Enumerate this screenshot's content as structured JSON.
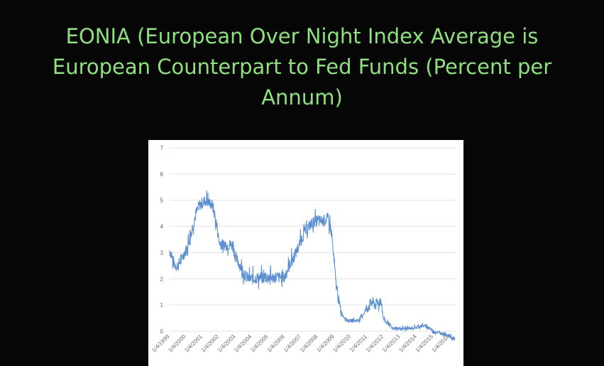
{
  "slide": {
    "title_lines": [
      "EONIA (European Over Night Index Average is",
      "European Counterpart to Fed Funds (Percent per",
      "Annum)"
    ],
    "title_color": "#8fe07f",
    "background": "#060606"
  },
  "chart_data": {
    "type": "line",
    "line_color": "#5b8fd0",
    "grid": true,
    "legend": "none",
    "xlim": [
      1999.0,
      2016.4
    ],
    "ylim": [
      0,
      7
    ],
    "y_ticks": [
      "0",
      "1",
      "2",
      "3",
      "4",
      "5",
      "6",
      "7"
    ],
    "x_tick_labels": [
      "1/4/1999",
      "1/4/2000",
      "1/4/2001",
      "1/4/2002",
      "1/4/2003",
      "1/4/2004",
      "1/4/2005",
      "1/4/2006",
      "1/4/2007",
      "1/4/2008",
      "1/4/2009",
      "1/4/2010",
      "1/4/2011",
      "1/4/2012",
      "1/4/2013",
      "1/4/2014",
      "1/4/2015",
      "1/4/2016"
    ],
    "x_tick_years": [
      1999,
      2000,
      2001,
      2002,
      2003,
      2004,
      2005,
      2006,
      2007,
      2008,
      2009,
      2010,
      2011,
      2012,
      2013,
      2014,
      2015,
      2016
    ],
    "series": [
      {
        "x": [
          1999.0,
          1999.1,
          1999.25,
          1999.4,
          1999.5,
          1999.7,
          1999.9,
          2000.0,
          2000.2,
          2000.4,
          2000.6,
          2000.8,
          2001.0,
          2001.2,
          2001.4,
          2001.6,
          2001.75,
          2001.9,
          2002.0,
          2002.2,
          2002.5,
          2002.8,
          2002.9,
          2003.0,
          2003.2,
          2003.45,
          2003.6,
          2003.8,
          2004.0,
          2004.5,
          2005.0,
          2005.5,
          2005.8,
          2006.0,
          2006.2,
          2006.4,
          2006.6,
          2006.8,
          2007.0,
          2007.2,
          2007.45,
          2007.6,
          2007.8,
          2008.0,
          2008.3,
          2008.6,
          2008.75,
          2008.85,
          2008.95,
          2009.1,
          2009.3,
          2009.5,
          2009.8,
          2010.0,
          2010.3,
          2010.5,
          2010.7,
          2011.0,
          2011.3,
          2011.5,
          2011.7,
          2011.85,
          2011.95,
          2012.1,
          2012.3,
          2012.5,
          2012.8,
          2013.0,
          2013.5,
          2014.0,
          2014.3,
          2014.5,
          2014.7,
          2014.8,
          2015.0,
          2015.3,
          2015.6,
          2015.9,
          2016.1,
          2016.3
        ],
        "y": [
          3.1,
          2.9,
          2.6,
          2.5,
          2.5,
          2.7,
          3.0,
          3.1,
          3.5,
          4.0,
          4.5,
          4.8,
          4.9,
          5.0,
          4.9,
          4.8,
          4.4,
          3.9,
          3.4,
          3.3,
          3.3,
          3.3,
          3.1,
          2.8,
          2.6,
          2.3,
          2.1,
          2.0,
          2.0,
          2.05,
          2.05,
          2.05,
          2.05,
          2.1,
          2.4,
          2.7,
          2.9,
          3.2,
          3.5,
          3.8,
          4.0,
          4.1,
          4.2,
          4.2,
          4.2,
          4.3,
          4.0,
          3.6,
          2.8,
          1.8,
          1.0,
          0.6,
          0.4,
          0.4,
          0.4,
          0.45,
          0.6,
          0.9,
          1.1,
          1.0,
          1.1,
          1.2,
          0.5,
          0.35,
          0.3,
          0.1,
          0.1,
          0.1,
          0.1,
          0.15,
          0.2,
          0.2,
          0.15,
          0.1,
          0.0,
          -0.05,
          -0.1,
          -0.15,
          -0.25,
          -0.3
        ]
      }
    ]
  }
}
